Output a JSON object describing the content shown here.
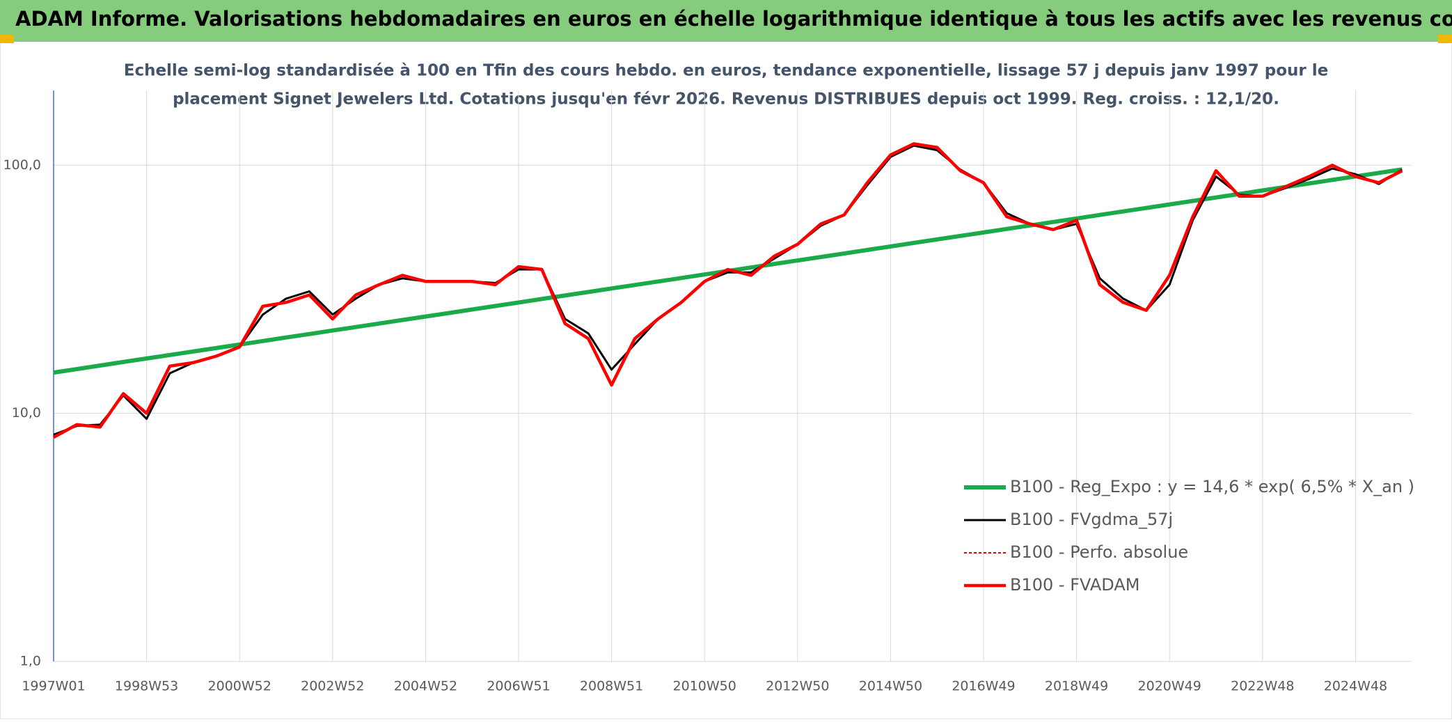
{
  "chart_data": {
    "type": "line",
    "header": "ADAM Informe. Valorisations hebdomadaires en euros en échelle logarithmique identique à tous les actifs avec les revenus connus distribués",
    "subtitle": [
      "Echelle semi-log standardisée à 100 en Tfin des cours hebdo. en euros, tendance exponentielle, lissage 57 j depuis janv 1997 pour le",
      "placement Signet Jewelers Ltd. Cotations jusqu'en févr 2026. Revenus DISTRIBUES depuis oct 1999. Reg. croiss. : 12,1/20."
    ],
    "categories": [
      "1997W01",
      null,
      null,
      null,
      "1998W53",
      null,
      null,
      null,
      "2000W52",
      null,
      null,
      null,
      "2002W52",
      null,
      null,
      null,
      "2004W52",
      null,
      null,
      null,
      "2006W51",
      null,
      null,
      null,
      "2008W51",
      null,
      null,
      null,
      "2010W50",
      null,
      null,
      null,
      "2012W50",
      null,
      null,
      null,
      "2014W50",
      null,
      null,
      null,
      "2016W49",
      null,
      null,
      null,
      "2018W49",
      null,
      null,
      null,
      "2020W49",
      null,
      null,
      null,
      "2022W48",
      null,
      null,
      null,
      "2024W48",
      null,
      null
    ],
    "log_scale": true,
    "ylim": [
      1,
      200
    ],
    "yticks": [
      {
        "value": 1,
        "label": "1,0"
      },
      {
        "value": 10,
        "label": "10,0"
      },
      {
        "value": 100,
        "label": "100,0"
      }
    ],
    "grid": true,
    "legend": "bottom-right",
    "series": [
      {
        "name": "B100 - Reg_Expo : y = 14,6 * exp( 6,5% *  X_an )",
        "color": "#1aaa4a",
        "width": 6,
        "dash": "none",
        "values": [
          14.6,
          15.08,
          15.58,
          16.1,
          16.63,
          17.18,
          17.74,
          18.33,
          18.93,
          19.56,
          20.21,
          20.87,
          21.56,
          22.28,
          23.01,
          23.77,
          24.56,
          25.37,
          26.21,
          27.07,
          27.97,
          28.89,
          29.85,
          30.83,
          31.85,
          32.9,
          33.99,
          35.11,
          36.27,
          37.47,
          38.71,
          39.99,
          41.31,
          42.67,
          44.08,
          45.54,
          47.04,
          48.6,
          50.2,
          51.86,
          53.57,
          55.34,
          57.17,
          59.06,
          61.01,
          63.03,
          65.11,
          67.26,
          69.48,
          71.77,
          74.14,
          76.59,
          79.12,
          81.74,
          84.44,
          87.23,
          90.11,
          93.09,
          96.16
        ]
      },
      {
        "name": "B100 - FVgdma_57j",
        "color": "#000000",
        "width": 3,
        "dash": "none",
        "values": [
          8.2,
          8.9,
          9,
          11.8,
          9.5,
          14.5,
          16,
          17,
          18.5,
          25,
          29,
          31,
          25,
          29,
          33,
          35,
          34,
          34,
          34,
          33.5,
          38,
          38,
          24,
          21,
          15,
          19,
          24,
          28,
          34,
          37,
          37,
          42,
          48,
          57,
          63,
          83,
          108,
          120,
          115,
          96,
          85,
          64,
          58,
          55,
          58,
          35,
          29,
          26,
          33,
          60,
          90,
          76,
          75,
          81,
          88,
          97,
          92,
          84,
          96
        ]
      },
      {
        "name": "B100 - Perfo. absolue",
        "color": "#e00000",
        "width": 2,
        "dash": "4 3",
        "values": [
          8,
          9,
          8.8,
          12,
          10,
          15.5,
          16,
          17,
          18.5,
          27,
          28,
          30,
          24,
          30,
          33,
          36,
          34,
          34,
          34,
          33,
          39,
          38,
          23,
          20,
          13,
          20,
          24,
          28,
          34,
          38,
          36,
          43,
          48,
          58,
          63,
          85,
          110,
          122,
          118,
          95,
          85,
          62,
          58,
          55,
          60,
          33,
          28,
          26,
          36,
          62,
          95,
          75,
          75,
          82,
          90,
          100,
          90,
          85,
          95
        ]
      },
      {
        "name": "B100 - FVADAM",
        "color": "#ff0000",
        "width": 4.5,
        "dash": "none",
        "values": [
          8,
          9,
          8.8,
          12,
          10,
          15.5,
          16,
          17,
          18.5,
          27,
          28,
          30,
          24,
          30,
          33,
          36,
          34,
          34,
          34,
          33,
          39,
          38,
          23,
          20,
          13,
          20,
          24,
          28,
          34,
          38,
          36,
          43,
          48,
          58,
          63,
          85,
          110,
          122,
          118,
          95,
          85,
          62,
          58,
          55,
          60,
          33,
          28,
          26,
          36,
          62,
          95,
          75,
          75,
          82,
          90,
          100,
          90,
          85,
          95
        ]
      }
    ]
  }
}
